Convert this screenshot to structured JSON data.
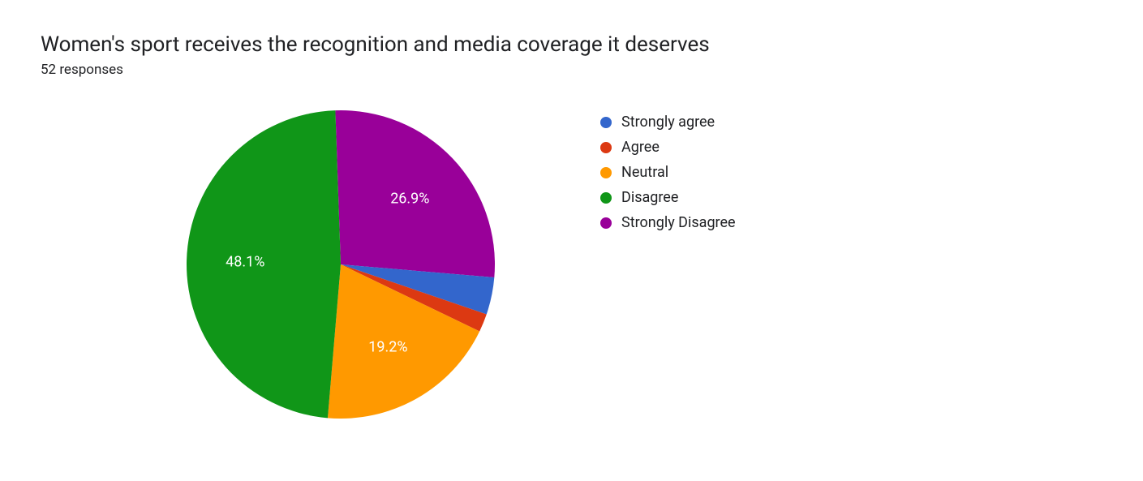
{
  "header": {
    "title": "Women's sport receives the recognition and media coverage it deserves",
    "subtitle": "52 responses"
  },
  "chart": {
    "type": "pie",
    "background_color": "#ffffff",
    "label_color": "#ffffff",
    "label_fontsize": 18,
    "slices": [
      {
        "label": "Strongly Disagree",
        "value": 26.9,
        "color": "#990099",
        "show_pct_label": true
      },
      {
        "label": "Strongly agree",
        "value": 3.9,
        "color": "#3366cc",
        "show_pct_label": false
      },
      {
        "label": "Agree",
        "value": 1.9,
        "color": "#dc3912",
        "show_pct_label": false
      },
      {
        "label": "Neutral",
        "value": 19.2,
        "color": "#ff9900",
        "show_pct_label": true
      },
      {
        "label": "Disagree",
        "value": 48.1,
        "color": "#109618",
        "show_pct_label": true
      }
    ],
    "legend_order": [
      "Strongly agree",
      "Agree",
      "Neutral",
      "Disagree",
      "Strongly Disagree"
    ]
  }
}
